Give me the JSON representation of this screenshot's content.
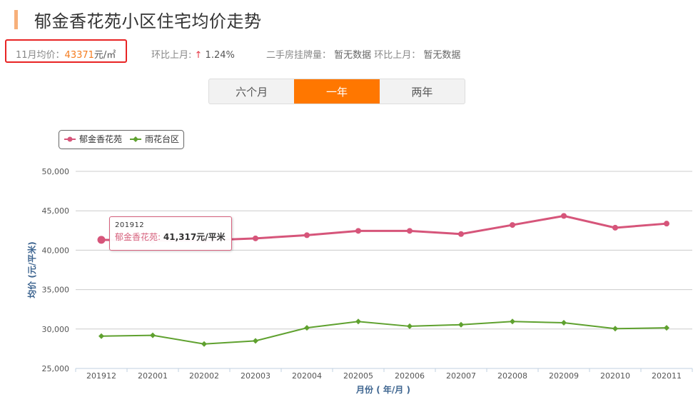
{
  "header": {
    "title": "郁金香花苑小区住宅均价走势",
    "accent_color": "#f7b07a"
  },
  "stats": {
    "price_label": "11月均价：",
    "price_value": "43371",
    "price_unit": "元/㎡",
    "mom_label": "环比上月: ",
    "mom_arrow": "↑",
    "mom_value": " 1.24%",
    "listing_label": "二手房挂牌量：",
    "listing_value": " 暂无数据 ",
    "listing_mom_label": "环比上月：",
    "listing_mom_value": " 暂无数据",
    "price_color": "#f57c1f",
    "highlight_border_color": "#e82424"
  },
  "tabs": [
    {
      "label": "六个月",
      "active": false
    },
    {
      "label": "一年",
      "active": true
    },
    {
      "label": "两年",
      "active": false
    }
  ],
  "tooltip": {
    "date": "201912",
    "series_name": "郁金香花苑",
    "value_text": "41,317元/平米"
  },
  "chart_data": {
    "type": "line",
    "title": "",
    "xlabel": "月份 ( 年/月 )",
    "ylabel": "均价 (元/平米)",
    "ylim": [
      25000,
      50000
    ],
    "yticks": [
      25000,
      30000,
      35000,
      40000,
      45000,
      50000
    ],
    "ytick_labels": [
      "25,000",
      "30,000",
      "35,000",
      "40,000",
      "45,000",
      "50,000"
    ],
    "grid": true,
    "legend_position": "top-left",
    "categories": [
      "201912",
      "202001",
      "202002",
      "202003",
      "202004",
      "202005",
      "202006",
      "202007",
      "202008",
      "202009",
      "202010",
      "202011"
    ],
    "series": [
      {
        "name": "郁金香花苑",
        "color": "#d6557a",
        "marker": "circle",
        "values": [
          41317,
          41200,
          41250,
          41500,
          41900,
          42450,
          42450,
          42050,
          43200,
          44350,
          42850,
          43371
        ]
      },
      {
        "name": "雨花台区",
        "color": "#5fa12f",
        "marker": "diamond",
        "values": [
          29100,
          29200,
          28100,
          28500,
          30150,
          30950,
          30350,
          30550,
          30950,
          30800,
          30050,
          30150
        ]
      }
    ]
  }
}
